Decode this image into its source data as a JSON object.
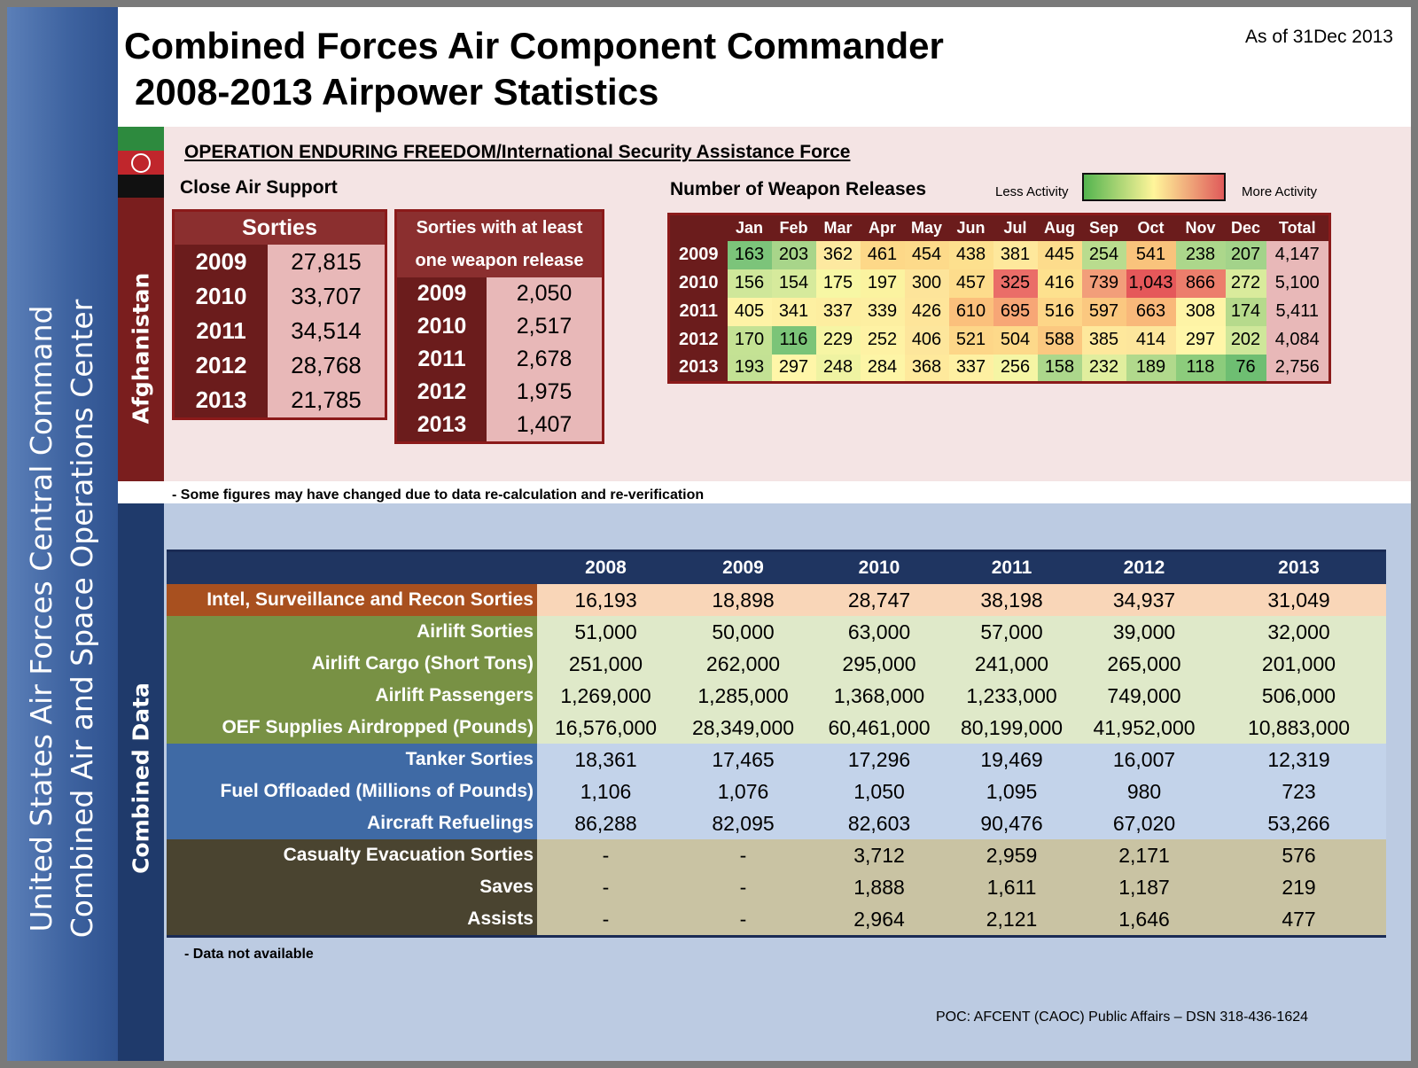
{
  "title": {
    "line1": "Combined Forces Air Component Commander",
    "line2": "2008-2013 Airpower Statistics"
  },
  "as_of": "As of 31Dec 2013",
  "side_band": {
    "line1": "United States Air Forces Central Command",
    "line2": "Combined Air and Space Operations Center"
  },
  "afghanistan_label": "Afghanistan",
  "combined_label": "Combined Data",
  "operation": "OPERATION ENDURING FREEDOM/International Security Assistance Force",
  "cas": {
    "label": "Close Air Support",
    "sorties_header": "Sorties",
    "sorties": [
      {
        "year": "2009",
        "value": "27,815"
      },
      {
        "year": "2010",
        "value": "33,707"
      },
      {
        "year": "2011",
        "value": "34,514"
      },
      {
        "year": "2012",
        "value": "28,768"
      },
      {
        "year": "2013",
        "value": "21,785"
      }
    ],
    "weapon_header_1": "Sorties with at least",
    "weapon_header_2": "one weapon release",
    "weapon_sorties": [
      {
        "year": "2009",
        "value": "2,050"
      },
      {
        "year": "2010",
        "value": "2,517"
      },
      {
        "year": "2011",
        "value": "2,678"
      },
      {
        "year": "2012",
        "value": "1,975"
      },
      {
        "year": "2013",
        "value": "1,407"
      }
    ]
  },
  "weapons": {
    "label": "Number of Weapon Releases",
    "less": "Less Activity",
    "more": "More Activity",
    "months": [
      "Jan",
      "Feb",
      "Mar",
      "Apr",
      "May",
      "Jun",
      "Jul",
      "Aug",
      "Sep",
      "Oct",
      "Nov",
      "Dec",
      "Total"
    ],
    "rows": [
      {
        "year": "2009",
        "cells": [
          "163",
          "203",
          "362",
          "461",
          "454",
          "438",
          "381",
          "445",
          "254",
          "541",
          "238",
          "207"
        ],
        "colors": [
          "#7cc47a",
          "#a8d58a",
          "#fde9a0",
          "#fdd888",
          "#fdda8a",
          "#fde08e",
          "#fee89c",
          "#fddc8c",
          "#b9dc8e",
          "#f9c37c",
          "#acd78b",
          "#a3d38a"
        ],
        "total": "4,147"
      },
      {
        "year": "2010",
        "cells": [
          "156",
          "154",
          "175",
          "197",
          "300",
          "457",
          "325",
          "416",
          "739",
          "1,043",
          "866",
          "272"
        ],
        "colors": [
          "#cfe79a",
          "#d6ea9c",
          "#f7f7a4",
          "#fbf3a0",
          "#fde49a",
          "#fddc8c",
          "#ea6d68",
          "#fde18e",
          "#f29e7a",
          "#e5585a",
          "#ec7e6c",
          "#d9eb9c"
        ],
        "total": "5,100"
      },
      {
        "year": "2011",
        "cells": [
          "405",
          "341",
          "337",
          "339",
          "426",
          "610",
          "695",
          "516",
          "597",
          "663",
          "308",
          "174"
        ],
        "colors": [
          "#fef3a6",
          "#fdf0a2",
          "#fdeea0",
          "#fdefa1",
          "#fee59a",
          "#fbc07c",
          "#f7a676",
          "#fdd688",
          "#fbc880",
          "#f9b87a",
          "#fef4a6",
          "#b6da8c"
        ],
        "total": "5,411"
      },
      {
        "year": "2012",
        "cells": [
          "170",
          "116",
          "229",
          "252",
          "406",
          "521",
          "504",
          "588",
          "385",
          "414",
          "297",
          "202"
        ],
        "colors": [
          "#c4e294",
          "#7bc478",
          "#f6f5a4",
          "#fef2a4",
          "#fde69c",
          "#fdd688",
          "#fdd98a",
          "#fbc880",
          "#fee89c",
          "#fde69c",
          "#fff6a8",
          "#cfe79a"
        ],
        "total": "4,084"
      },
      {
        "year": "2013",
        "cells": [
          "193",
          "297",
          "248",
          "284",
          "368",
          "337",
          "256",
          "158",
          "232",
          "189",
          "118",
          "76"
        ],
        "colors": [
          "#c3e194",
          "#fff6a8",
          "#eff3a2",
          "#fdf5a6",
          "#fee99c",
          "#fef0a2",
          "#f5f5a4",
          "#acd78b",
          "#e1ee9e",
          "#b1d98c",
          "#8ccc7c",
          "#6ebe72"
        ],
        "total": "2,756"
      }
    ]
  },
  "note1": "- Some figures may have changed due to data re-calculation and re-verification",
  "combined": {
    "years": [
      "2008",
      "2009",
      "2010",
      "2011",
      "2012",
      "2013"
    ],
    "rows": [
      {
        "label": "Intel, Surveillance and Recon Sorties",
        "values": [
          "16,193",
          "18,898",
          "28,747",
          "38,198",
          "34,937",
          "31,049"
        ],
        "group": "isr"
      },
      {
        "label": "Airlift Sorties",
        "values": [
          "51,000",
          "50,000",
          "63,000",
          "57,000",
          "39,000",
          "32,000"
        ],
        "group": "airlift"
      },
      {
        "label": "Airlift Cargo (Short Tons)",
        "values": [
          "251,000",
          "262,000",
          "295,000",
          "241,000",
          "265,000",
          "201,000"
        ],
        "group": "airlift"
      },
      {
        "label": "Airlift Passengers",
        "values": [
          "1,269,000",
          "1,285,000",
          "1,368,000",
          "1,233,000",
          "749,000",
          "506,000"
        ],
        "group": "airlift"
      },
      {
        "label": "OEF Supplies Airdropped (Pounds)",
        "values": [
          "16,576,000",
          "28,349,000",
          "60,461,000",
          "80,199,000",
          "41,952,000",
          "10,883,000"
        ],
        "group": "airlift"
      },
      {
        "label": "Tanker Sorties",
        "values": [
          "18,361",
          "17,465",
          "17,296",
          "19,469",
          "16,007",
          "12,319"
        ],
        "group": "tanker"
      },
      {
        "label": "Fuel Offloaded (Millions of Pounds)",
        "values": [
          "1,106",
          "1,076",
          "1,050",
          "1,095",
          "980",
          "723"
        ],
        "group": "tanker"
      },
      {
        "label": "Aircraft Refuelings",
        "values": [
          "86,288",
          "82,095",
          "82,603",
          "90,476",
          "67,020",
          "53,266"
        ],
        "group": "tanker"
      },
      {
        "label": "Casualty Evacuation Sorties",
        "values": [
          "-",
          "-",
          "3,712",
          "2,959",
          "2,171",
          "576"
        ],
        "group": "casevac"
      },
      {
        "label": "Saves",
        "values": [
          "-",
          "-",
          "1,888",
          "1,611",
          "1,187",
          "219"
        ],
        "group": "casevac"
      },
      {
        "label": "Assists",
        "values": [
          "-",
          "-",
          "2,964",
          "2,121",
          "1,646",
          "477"
        ],
        "group": "casevac"
      }
    ],
    "group_colors": {
      "isr": {
        "label_bg": "#a8501f",
        "cell_bg": "#f9d6b8"
      },
      "airlift": {
        "label_bg": "#789144",
        "cell_bg": "#dfe9c9"
      },
      "tanker": {
        "label_bg": "#3f6aa5",
        "cell_bg": "#c3d3ea"
      },
      "casevac": {
        "label_bg": "#4a4430",
        "cell_bg": "#c9c3a3"
      }
    }
  },
  "note2": "- Data not available",
  "poc": "POC:  AFCENT (CAOC) Public Affairs – DSN  318-436-1624"
}
